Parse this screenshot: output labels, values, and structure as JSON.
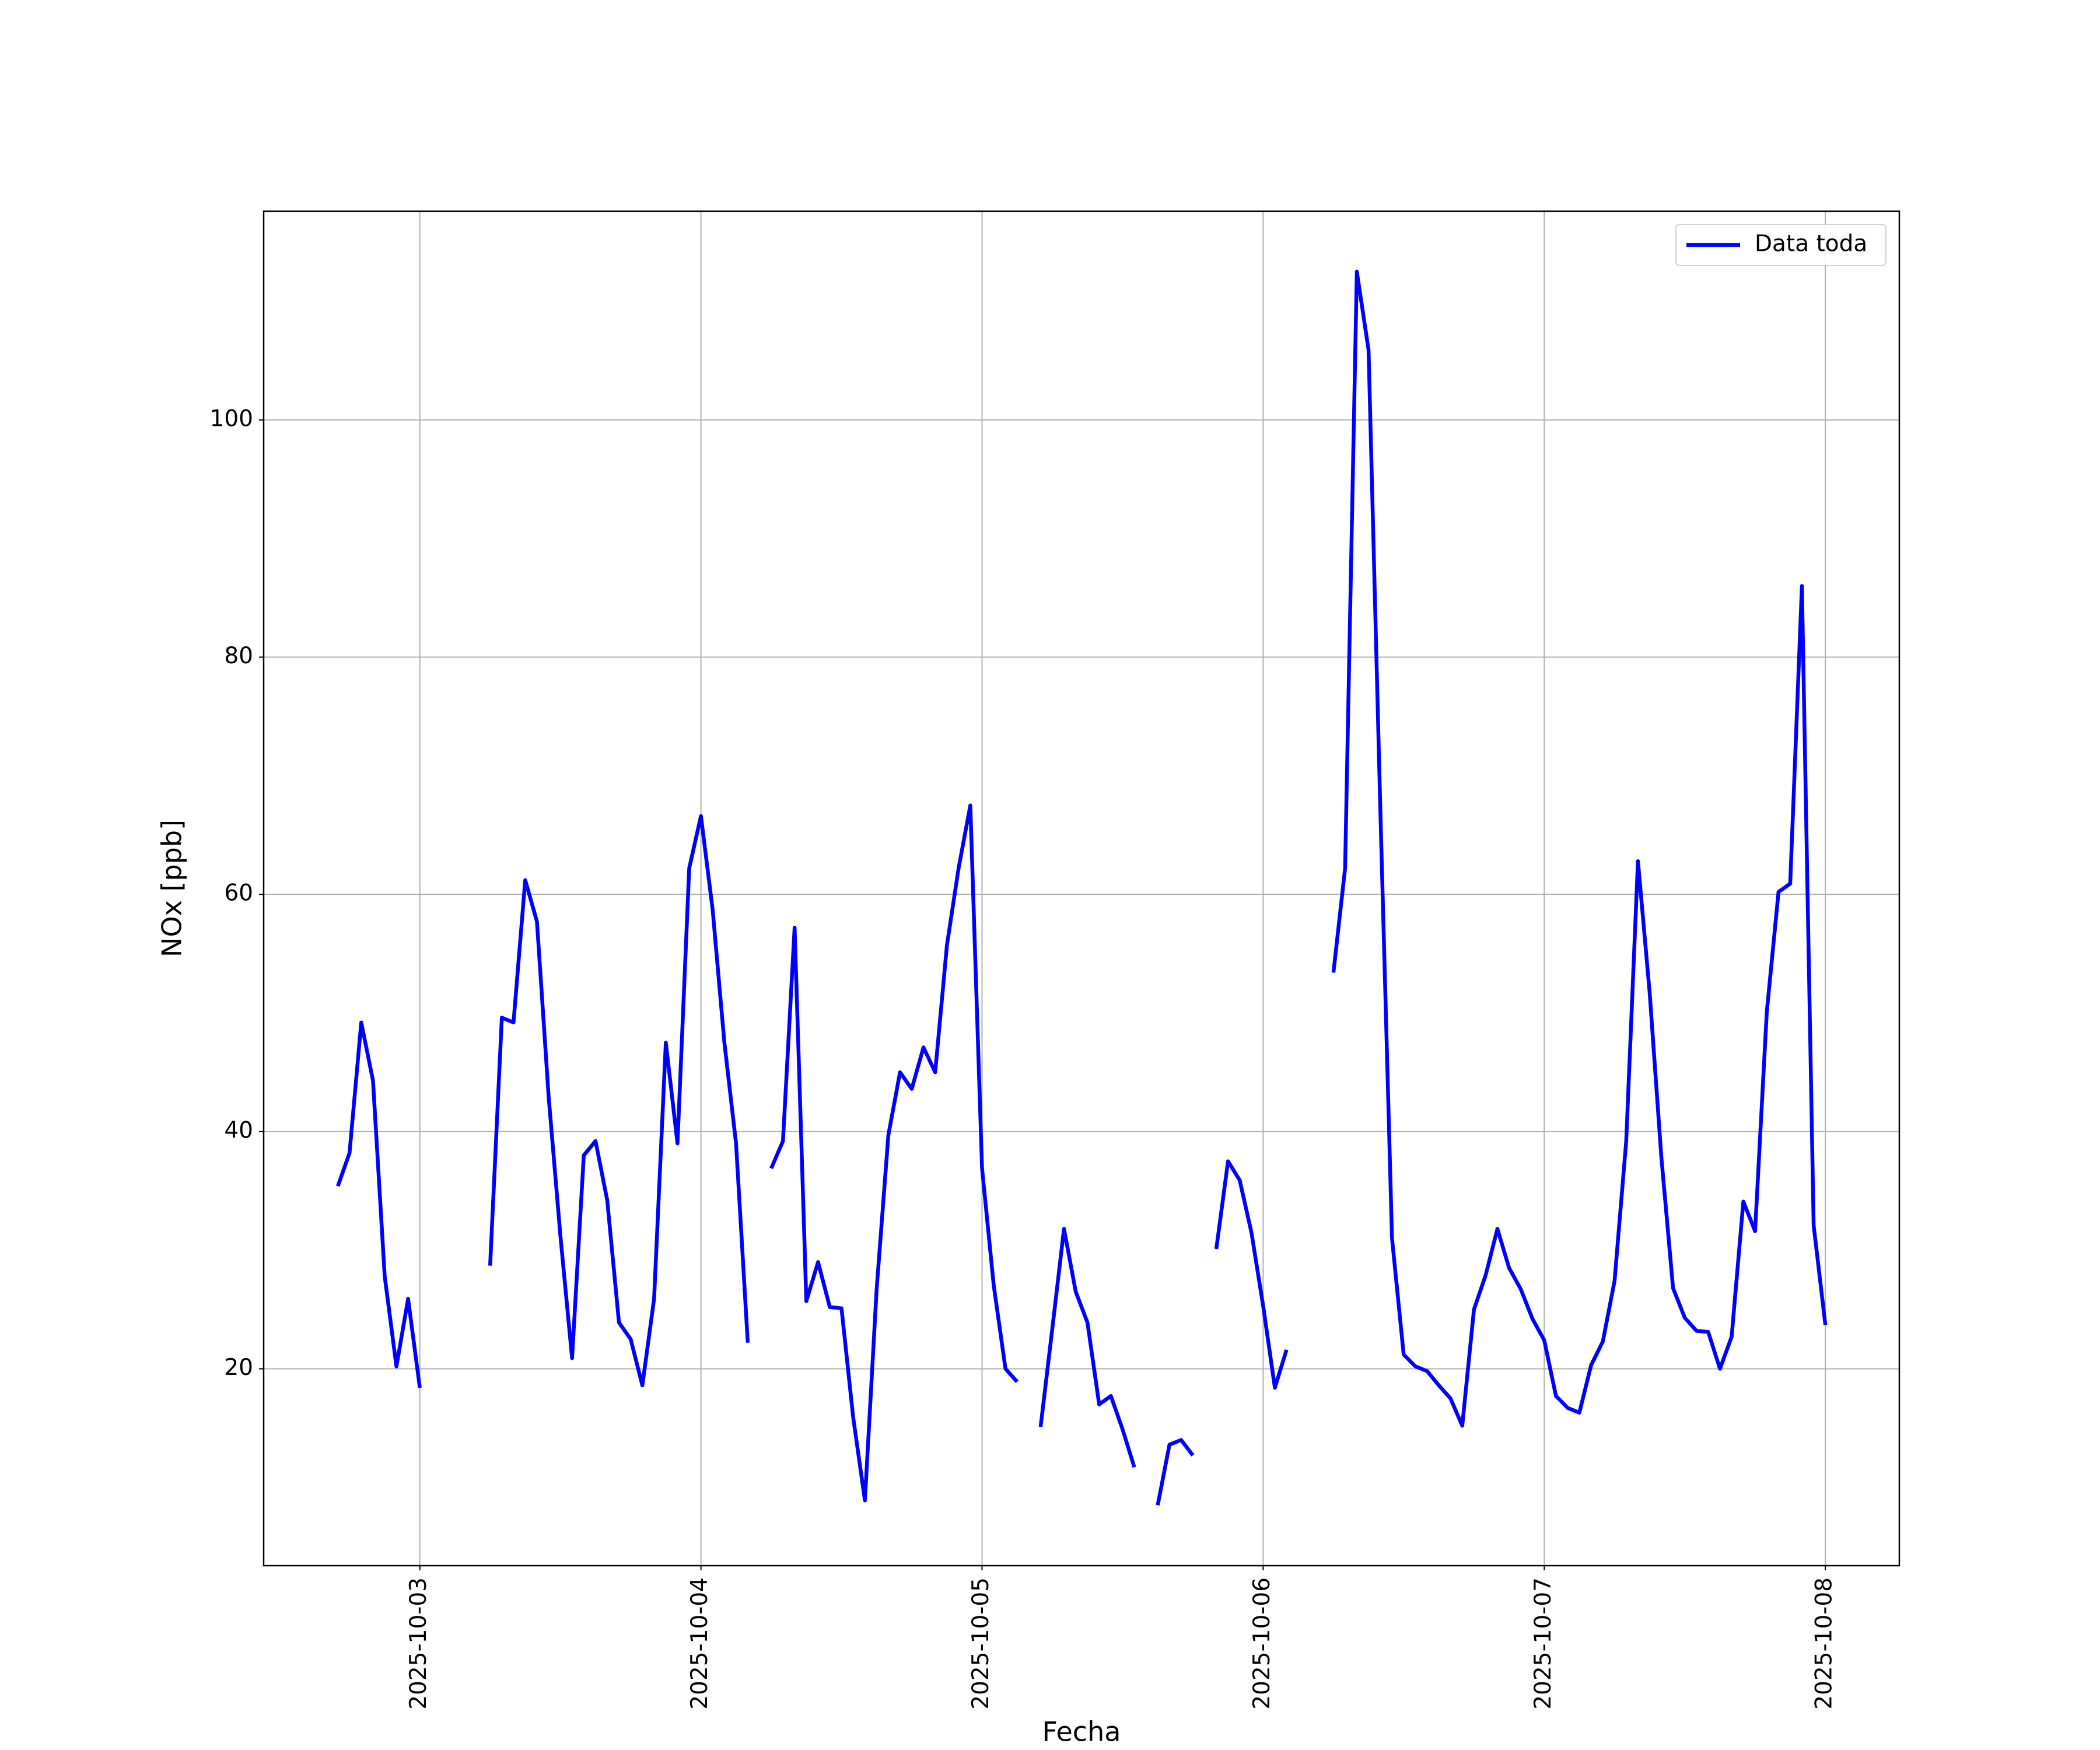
{
  "chart_data": {
    "type": "line",
    "xlabel": "Fecha",
    "ylabel": "NOx [ppb]",
    "x": [
      "2025-10-02 17:00",
      "2025-10-02 18:00",
      "2025-10-02 19:00",
      "2025-10-02 20:00",
      "2025-10-02 21:00",
      "2025-10-02 22:00",
      "2025-10-02 23:00",
      "2025-10-03 00:00",
      "2025-10-03 01:00",
      "2025-10-03 02:00",
      "2025-10-03 03:00",
      "2025-10-03 04:00",
      "2025-10-03 05:00",
      "2025-10-03 06:00",
      "2025-10-03 07:00",
      "2025-10-03 08:00",
      "2025-10-03 09:00",
      "2025-10-03 10:00",
      "2025-10-03 11:00",
      "2025-10-03 12:00",
      "2025-10-03 13:00",
      "2025-10-03 14:00",
      "2025-10-03 15:00",
      "2025-10-03 16:00",
      "2025-10-03 17:00",
      "2025-10-03 18:00",
      "2025-10-03 19:00",
      "2025-10-03 20:00",
      "2025-10-03 21:00",
      "2025-10-03 22:00",
      "2025-10-03 23:00",
      "2025-10-04 00:00",
      "2025-10-04 01:00",
      "2025-10-04 02:00",
      "2025-10-04 03:00",
      "2025-10-04 04:00",
      "2025-10-04 05:00",
      "2025-10-04 06:00",
      "2025-10-04 07:00",
      "2025-10-04 08:00",
      "2025-10-04 09:00",
      "2025-10-04 10:00",
      "2025-10-04 11:00",
      "2025-10-04 12:00",
      "2025-10-04 13:00",
      "2025-10-04 14:00",
      "2025-10-04 15:00",
      "2025-10-04 16:00",
      "2025-10-04 17:00",
      "2025-10-04 18:00",
      "2025-10-04 19:00",
      "2025-10-04 20:00",
      "2025-10-04 21:00",
      "2025-10-04 22:00",
      "2025-10-04 23:00",
      "2025-10-05 00:00",
      "2025-10-05 01:00",
      "2025-10-05 02:00",
      "2025-10-05 03:00",
      "2025-10-05 04:00",
      "2025-10-05 05:00",
      "2025-10-05 06:00",
      "2025-10-05 07:00",
      "2025-10-05 08:00",
      "2025-10-05 09:00",
      "2025-10-05 10:00",
      "2025-10-05 11:00",
      "2025-10-05 12:00",
      "2025-10-05 13:00",
      "2025-10-05 14:00",
      "2025-10-05 15:00",
      "2025-10-05 16:00",
      "2025-10-05 17:00",
      "2025-10-05 18:00",
      "2025-10-05 19:00",
      "2025-10-05 20:00",
      "2025-10-05 21:00",
      "2025-10-05 22:00",
      "2025-10-05 23:00",
      "2025-10-06 00:00",
      "2025-10-06 01:00",
      "2025-10-06 02:00",
      "2025-10-06 03:00",
      "2025-10-06 04:00",
      "2025-10-06 05:00",
      "2025-10-06 06:00",
      "2025-10-06 07:00",
      "2025-10-06 08:00",
      "2025-10-06 09:00",
      "2025-10-06 10:00",
      "2025-10-06 11:00",
      "2025-10-06 12:00",
      "2025-10-06 13:00",
      "2025-10-06 14:00",
      "2025-10-06 15:00",
      "2025-10-06 16:00",
      "2025-10-06 17:00",
      "2025-10-06 18:00",
      "2025-10-06 19:00",
      "2025-10-06 20:00",
      "2025-10-06 21:00",
      "2025-10-06 22:00",
      "2025-10-06 23:00",
      "2025-10-07 00:00",
      "2025-10-07 01:00",
      "2025-10-07 02:00",
      "2025-10-07 03:00",
      "2025-10-07 04:00",
      "2025-10-07 05:00",
      "2025-10-07 06:00",
      "2025-10-07 07:00",
      "2025-10-07 08:00",
      "2025-10-07 09:00",
      "2025-10-07 10:00",
      "2025-10-07 11:00",
      "2025-10-07 12:00",
      "2025-10-07 13:00",
      "2025-10-07 14:00",
      "2025-10-07 15:00",
      "2025-10-07 16:00",
      "2025-10-07 17:00",
      "2025-10-07 18:00",
      "2025-10-07 19:00",
      "2025-10-07 20:00",
      "2025-10-07 21:00",
      "2025-10-07 22:00",
      "2025-10-07 23:00",
      "2025-10-08 00:00"
    ],
    "series": [
      {
        "name": "Data toda",
        "color": "#0000ff",
        "values": [
          35.4,
          38.2,
          49.2,
          44.3,
          27.8,
          20.2,
          25.9,
          18.4,
          null,
          null,
          null,
          null,
          null,
          28.7,
          49.6,
          49.2,
          61.2,
          57.7,
          42.9,
          31.2,
          20.9,
          38.0,
          39.2,
          34.2,
          23.9,
          22.5,
          18.6,
          25.9,
          47.5,
          39.0,
          62.2,
          66.6,
          58.7,
          47.5,
          39.0,
          22.2,
          null,
          36.9,
          39.2,
          57.2,
          25.7,
          29.0,
          25.2,
          25.1,
          15.9,
          8.9,
          26.7,
          39.7,
          45.0,
          43.6,
          47.1,
          45.0,
          55.7,
          62.2,
          67.5,
          36.9,
          27.0,
          20.0,
          18.9,
          null,
          15.1,
          23.4,
          31.8,
          26.5,
          23.9,
          17.0,
          17.7,
          14.9,
          11.7,
          null,
          8.5,
          13.6,
          14.0,
          12.7,
          null,
          30.1,
          37.5,
          35.9,
          31.5,
          25.3,
          18.4,
          21.6,
          null,
          null,
          null,
          53.4,
          62.2,
          112.5,
          105.9,
          67.3,
          31.0,
          21.2,
          20.2,
          19.8,
          18.6,
          17.5,
          15.2,
          25.0,
          27.9,
          31.8,
          28.5,
          26.7,
          24.2,
          22.4,
          17.7,
          16.7,
          16.3,
          20.3,
          22.3,
          27.4,
          39.2,
          62.8,
          51.7,
          37.8,
          26.8,
          24.3,
          23.2,
          23.1,
          20.0,
          22.7,
          34.1,
          31.6,
          50.1,
          60.2,
          60.9,
          86.0,
          32.1,
          23.7
        ]
      }
    ],
    "xlim": [
      "2025-10-02 10:40",
      "2025-10-08 06:19"
    ],
    "xticks": [
      "2025-10-03",
      "2025-10-04",
      "2025-10-05",
      "2025-10-06",
      "2025-10-07",
      "2025-10-08"
    ],
    "ylim": [
      3.4,
      117.6
    ],
    "yticks": [
      20,
      40,
      60,
      80,
      100
    ],
    "grid": true,
    "legend": "upper right"
  }
}
